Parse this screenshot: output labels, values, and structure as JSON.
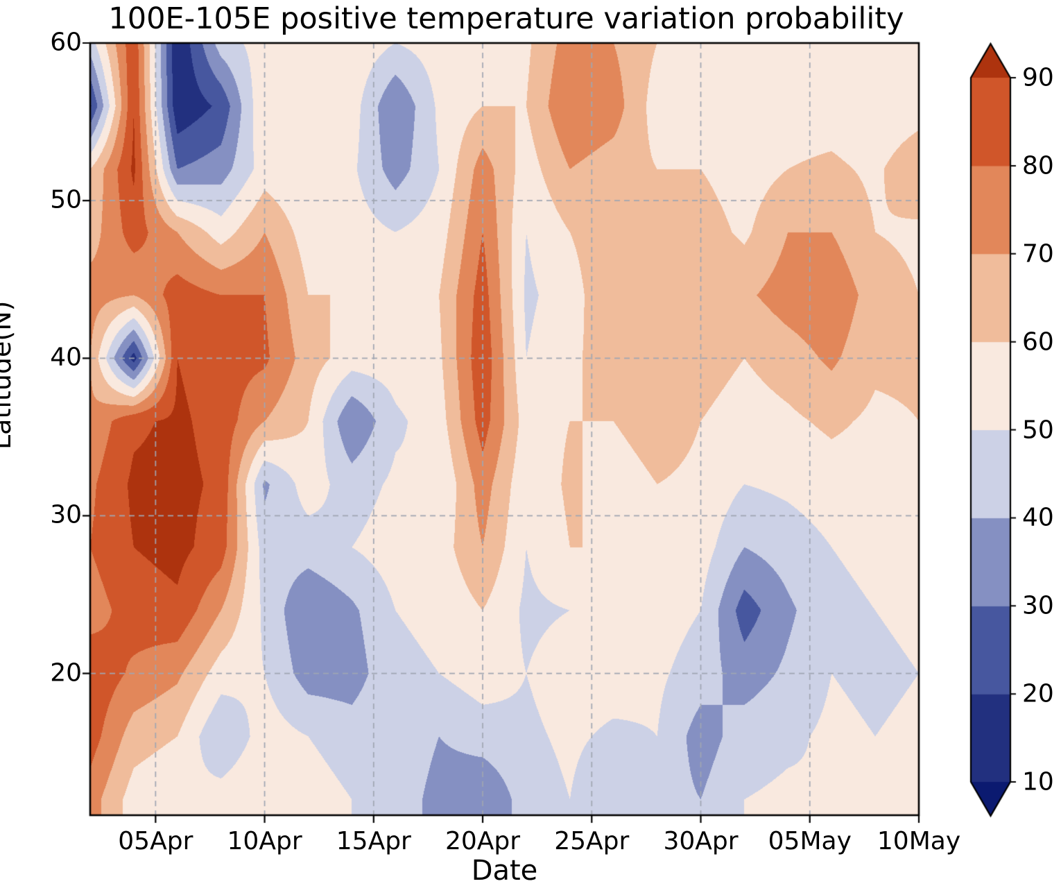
{
  "chart_data": {
    "type": "heatmap",
    "title": "100E-105E positive temperature variation probability",
    "xlabel": "Date",
    "ylabel": "Latitude(N)",
    "x_tick_labels": [
      "05Apr",
      "10Apr",
      "15Apr",
      "20Apr",
      "25Apr",
      "30Apr",
      "05May",
      "10May"
    ],
    "x_tick_days": [
      5,
      10,
      15,
      20,
      25,
      30,
      35,
      40
    ],
    "y_tick_labels": [
      "20",
      "30",
      "40",
      "50",
      "60"
    ],
    "y_tick_values": [
      20,
      30,
      40,
      50,
      60
    ],
    "x_range_days": [
      2,
      40
    ],
    "y_range_lat": [
      11,
      60
    ],
    "grid": {
      "dates": [
        "02Apr",
        "04Apr",
        "06Apr",
        "08Apr",
        "10Apr",
        "12Apr",
        "14Apr",
        "16Apr",
        "18Apr",
        "20Apr",
        "22Apr",
        "24Apr",
        "26Apr",
        "28Apr",
        "30Apr",
        "02May",
        "04May",
        "06May",
        "08May",
        "10May"
      ],
      "days": [
        2,
        4,
        6,
        8,
        10,
        12,
        14,
        16,
        18,
        20,
        22,
        24,
        26,
        28,
        30,
        32,
        34,
        36,
        38,
        40
      ],
      "lats": [
        12,
        16,
        20,
        24,
        28,
        32,
        36,
        40,
        44,
        48,
        52,
        56,
        60
      ],
      "values": [
        [
          75,
          85,
          88,
          75,
          80,
          78,
          72,
          70,
          75,
          65,
          60,
          18,
          45
        ],
        [
          55,
          65,
          78,
          85,
          90,
          92,
          88,
          15,
          70,
          85,
          92,
          90,
          88
        ],
        [
          50,
          60,
          72,
          88,
          93,
          93,
          92,
          90,
          85,
          70,
          30,
          12,
          10
        ],
        [
          55,
          40,
          55,
          70,
          85,
          88,
          86,
          84,
          80,
          55,
          35,
          22,
          45
        ],
        [
          60,
          55,
          50,
          48,
          45,
          38,
          70,
          82,
          80,
          70,
          55,
          60,
          55
        ],
        [
          55,
          50,
          35,
          30,
          45,
          55,
          60,
          65,
          60,
          55,
          50,
          52,
          55
        ],
        [
          50,
          45,
          35,
          38,
          50,
          45,
          30,
          55,
          60,
          55,
          52,
          55,
          58
        ],
        [
          48,
          50,
          48,
          50,
          55,
          52,
          48,
          55,
          58,
          50,
          35,
          30,
          50
        ],
        [
          35,
          40,
          50,
          52,
          55,
          50,
          55,
          58,
          60,
          55,
          50,
          52,
          55
        ],
        [
          30,
          45,
          55,
          60,
          70,
          75,
          85,
          88,
          85,
          80,
          75,
          60,
          55
        ],
        [
          45,
          48,
          50,
          48,
          50,
          52,
          55,
          50,
          48,
          50,
          55,
          60,
          58
        ],
        [
          50,
          52,
          55,
          50,
          60,
          62,
          60,
          58,
          55,
          60,
          70,
          80,
          75
        ],
        [
          40,
          48,
          55,
          58,
          60,
          55,
          60,
          65,
          70,
          68,
          65,
          75,
          70
        ],
        [
          45,
          50,
          52,
          55,
          58,
          60,
          65,
          70,
          68,
          65,
          60,
          55,
          60
        ],
        [
          40,
          35,
          45,
          50,
          55,
          58,
          60,
          65,
          70,
          65,
          60,
          55,
          52
        ],
        [
          50,
          45,
          35,
          25,
          40,
          50,
          55,
          60,
          68,
          58,
          55,
          52,
          55
        ],
        [
          52,
          48,
          42,
          38,
          45,
          52,
          58,
          65,
          75,
          70,
          60,
          55,
          52
        ],
        [
          50,
          52,
          50,
          48,
          50,
          55,
          62,
          72,
          78,
          70,
          62,
          55,
          50
        ],
        [
          52,
          50,
          48,
          50,
          52,
          55,
          58,
          62,
          65,
          60,
          58,
          52,
          55
        ],
        [
          55,
          52,
          50,
          52,
          55,
          58,
          60,
          62,
          60,
          58,
          68,
          55,
          52
        ]
      ]
    },
    "colorbar": {
      "tick_labels": [
        "10",
        "20",
        "30",
        "40",
        "50",
        "60",
        "70",
        "80",
        "90"
      ],
      "levels": [
        10,
        20,
        30,
        40,
        50,
        60,
        70,
        80,
        90
      ],
      "colors": [
        "#0b1a70",
        "#22307f",
        "#47579f",
        "#8590c2",
        "#ccd1e6",
        "#f9e9df",
        "#f0bc9b",
        "#e2875a",
        "#d0562a",
        "#ad330e"
      ]
    },
    "style": {
      "grid_color": "#a0a6b2",
      "axis_color": "#000000",
      "background": "#ffffff"
    }
  }
}
